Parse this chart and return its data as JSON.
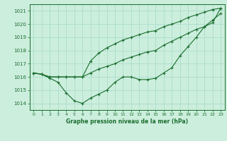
{
  "title": "Graphe pression niveau de la mer (hPa)",
  "background_color": "#cceedd",
  "grid_color": "#aaddcc",
  "line_color": "#1a6e2e",
  "xlim": [
    -0.5,
    23.5
  ],
  "ylim": [
    1013.5,
    1021.5
  ],
  "yticks": [
    1014,
    1015,
    1016,
    1017,
    1018,
    1019,
    1020,
    1021
  ],
  "xticks": [
    0,
    1,
    2,
    3,
    4,
    5,
    6,
    7,
    8,
    9,
    10,
    11,
    12,
    13,
    14,
    15,
    16,
    17,
    18,
    19,
    20,
    21,
    22,
    23
  ],
  "hours": [
    0,
    1,
    2,
    3,
    4,
    5,
    6,
    7,
    8,
    9,
    10,
    11,
    12,
    13,
    14,
    15,
    16,
    17,
    18,
    19,
    20,
    21,
    22,
    23
  ],
  "line1": [
    1016.3,
    1016.2,
    1015.9,
    1015.6,
    1014.8,
    1014.2,
    1014.0,
    1014.4,
    1014.7,
    1015.0,
    1015.6,
    1016.0,
    1016.0,
    1015.8,
    1015.8,
    1015.9,
    1016.3,
    1016.7,
    1017.6,
    1018.3,
    1019.0,
    1019.8,
    1020.3,
    1020.8
  ],
  "line2": [
    1016.3,
    1016.2,
    1016.0,
    1016.0,
    1016.0,
    1016.0,
    1016.0,
    1017.2,
    1017.8,
    1018.2,
    1018.5,
    1018.8,
    1019.0,
    1019.2,
    1019.4,
    1019.5,
    1019.8,
    1020.0,
    1020.2,
    1020.5,
    1020.7,
    1020.9,
    1021.1,
    1021.2
  ],
  "line3": [
    1016.3,
    1016.2,
    1016.0,
    1016.0,
    1016.0,
    1016.0,
    1016.0,
    1016.3,
    1016.6,
    1016.8,
    1017.0,
    1017.3,
    1017.5,
    1017.7,
    1017.9,
    1018.0,
    1018.4,
    1018.7,
    1019.0,
    1019.3,
    1019.6,
    1019.8,
    1020.1,
    1021.2
  ]
}
